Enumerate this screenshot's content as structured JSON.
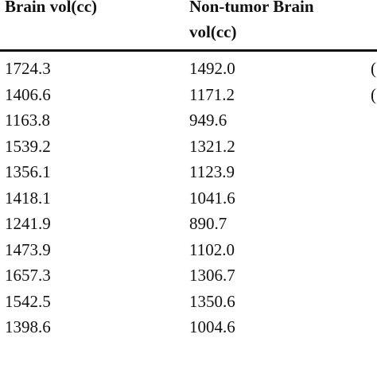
{
  "table": {
    "headers": [
      {
        "line1": "Brain vol(cc)",
        "line2": ""
      },
      {
        "line1": "Non-tumor Brain",
        "line2": "vol(cc)"
      },
      {
        "line1": "",
        "line2": ""
      }
    ],
    "rows": [
      {
        "brain_vol": "1724.3",
        "non_tumor_vol": "1492.0",
        "third": "(",
        "third_width": 1
      },
      {
        "brain_vol": "1406.6",
        "non_tumor_vol": "1171.2",
        "third": "(",
        "third_width": 1
      },
      {
        "brain_vol": "1163.8",
        "non_tumor_vol": "949.6",
        "third": "",
        "third_width": 0
      },
      {
        "brain_vol": "1539.2",
        "non_tumor_vol": "1321.2",
        "third": "",
        "third_width": 0
      },
      {
        "brain_vol": "1356.1",
        "non_tumor_vol": "1123.9",
        "third": "",
        "third_width": 0
      },
      {
        "brain_vol": "1418.1",
        "non_tumor_vol": "1041.6",
        "third": "",
        "third_width": 0
      },
      {
        "brain_vol": "1241.9",
        "non_tumor_vol": "890.7",
        "third": "",
        "third_width": 0
      },
      {
        "brain_vol": "1473.9",
        "non_tumor_vol": "1102.0",
        "third": "",
        "third_width": 0
      },
      {
        "brain_vol": "1657.3",
        "non_tumor_vol": "1306.7",
        "third": "",
        "third_width": 0
      },
      {
        "brain_vol": "1542.5",
        "non_tumor_vol": "1350.6",
        "third": "",
        "third_width": 0
      },
      {
        "brain_vol": "1398.6",
        "non_tumor_vol": "1004.6",
        "third": "",
        "third_width": 0
      }
    ]
  }
}
